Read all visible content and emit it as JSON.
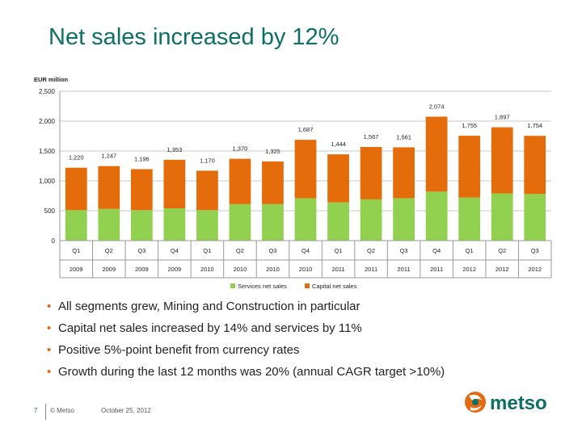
{
  "slide": {
    "title": "Net sales increased by 12%",
    "bullets": [
      "All segments grew, Mining and Construction in particular",
      "Capital net sales increased by 14% and services by 11%",
      "Positive 5%-point benefit from currency rates",
      "Growth during the last 12 months was 20% (annual CAGR target >10%)"
    ]
  },
  "footer": {
    "page_number": "7",
    "copyright": "© Metso",
    "date": "October 25, 2012"
  },
  "logo": {
    "text": "metso",
    "icon": "metso-swirl-icon",
    "color_orange": "#e36a10",
    "color_green": "#0d6f66"
  },
  "chart_data": {
    "type": "bar",
    "stacked": true,
    "ylabel": "EUR million",
    "ylim": [
      0,
      2500
    ],
    "yticks": [
      "0",
      "500",
      "1,000",
      "1,500",
      "2,000",
      "2,500"
    ],
    "ytick_values": [
      0,
      500,
      1000,
      1500,
      2000,
      2500
    ],
    "grid": true,
    "legend_position": "bottom",
    "categories": [
      {
        "quarter": "Q1",
        "year": "2009"
      },
      {
        "quarter": "Q2",
        "year": "2009"
      },
      {
        "quarter": "Q3",
        "year": "2009"
      },
      {
        "quarter": "Q4",
        "year": "2009"
      },
      {
        "quarter": "Q1",
        "year": "2010"
      },
      {
        "quarter": "Q2",
        "year": "2010"
      },
      {
        "quarter": "Q3",
        "year": "2010"
      },
      {
        "quarter": "Q4",
        "year": "2010"
      },
      {
        "quarter": "Q1",
        "year": "2011"
      },
      {
        "quarter": "Q2",
        "year": "2011"
      },
      {
        "quarter": "Q3",
        "year": "2011"
      },
      {
        "quarter": "Q4",
        "year": "2011"
      },
      {
        "quarter": "Q1",
        "year": "2012"
      },
      {
        "quarter": "Q2",
        "year": "2012"
      },
      {
        "quarter": "Q3",
        "year": "2012"
      }
    ],
    "series": [
      {
        "name": "Services net sales",
        "color": "#92d050",
        "values": [
          510,
          530,
          510,
          540,
          510,
          610,
          610,
          710,
          640,
          690,
          710,
          820,
          720,
          790,
          780
        ]
      },
      {
        "name": "Capital net sales",
        "color": "#e46c0a",
        "values": [
          710,
          717,
          686,
          813,
          660,
          760,
          715,
          977,
          804,
          877,
          851,
          1254,
          1035,
          1107,
          974
        ]
      }
    ],
    "totals": [
      1220,
      1247,
      1196,
      1353,
      1170,
      1370,
      1325,
      1687,
      1444,
      1567,
      1561,
      2074,
      1755,
      1897,
      1754
    ],
    "total_labels": [
      "1,220",
      "1,247",
      "1,196",
      "1,353",
      "1,170",
      "1,370",
      "1,325",
      "1,687",
      "1,444",
      "1,567",
      "1,561",
      "2,074",
      "1,755",
      "1,897",
      "1,754"
    ]
  }
}
